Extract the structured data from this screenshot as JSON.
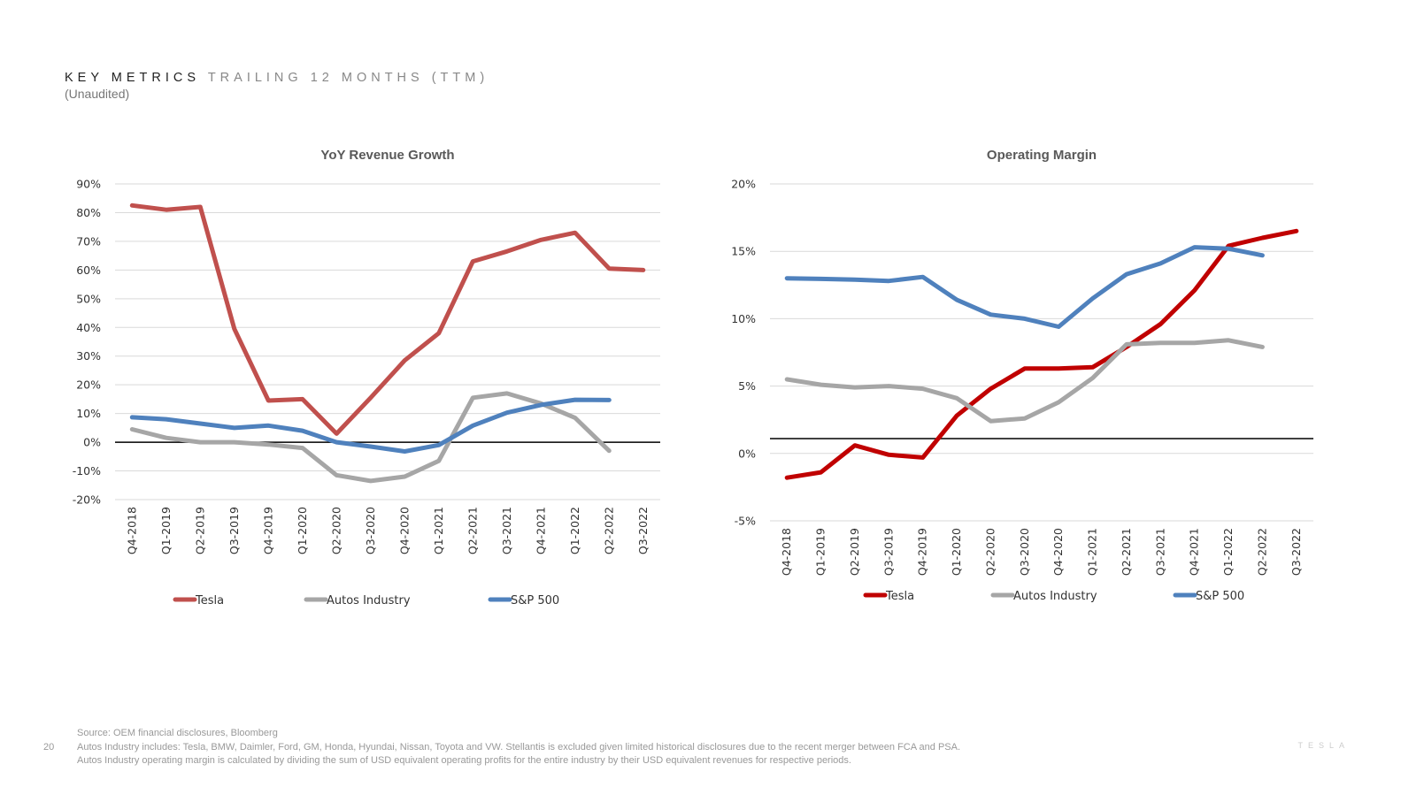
{
  "header": {
    "title_main": "KEY METRICS",
    "title_sub": "TRAILING 12 MONTHS (TTM)",
    "note": "(Unaudited)"
  },
  "chart_data": [
    {
      "type": "line",
      "title": "YoY Revenue Growth",
      "x": [
        "Q4-2018",
        "Q1-2019",
        "Q2-2019",
        "Q3-2019",
        "Q4-2019",
        "Q1-2020",
        "Q2-2020",
        "Q3-2020",
        "Q4-2020",
        "Q1-2021",
        "Q2-2021",
        "Q3-2021",
        "Q4-2021",
        "Q1-2022",
        "Q2-2022",
        "Q3-2022"
      ],
      "ylim": [
        -20,
        90
      ],
      "yticks": [
        -20,
        -10,
        0,
        10,
        20,
        30,
        40,
        50,
        60,
        70,
        80,
        90
      ],
      "tick_suffix": "%",
      "zero_line": 0,
      "grid": true,
      "legend_position": "bottom",
      "series": [
        {
          "name": "Tesla",
          "color": "#C0504D",
          "values": [
            82.5,
            81,
            82,
            39.5,
            14.5,
            15,
            3,
            15.5,
            28.5,
            38,
            63,
            66.5,
            70.5,
            73,
            60.5,
            60
          ]
        },
        {
          "name": "Autos Industry",
          "color": "#A6A6A6",
          "values": [
            4.5,
            1.5,
            0,
            0,
            -0.8,
            -2,
            -11.5,
            -13.5,
            -12,
            -6.5,
            15.5,
            17,
            13.5,
            8.5,
            -3,
            null
          ]
        },
        {
          "name": "S&P 500",
          "color": "#4F81BD",
          "values": [
            8.7,
            8,
            6.5,
            5,
            5.8,
            4,
            0,
            -1.5,
            -3.2,
            -1,
            5.8,
            10.3,
            13,
            14.8,
            14.7,
            null
          ]
        }
      ]
    },
    {
      "type": "line",
      "title": "Operating Margin",
      "x": [
        "Q4-2018",
        "Q1-2019",
        "Q2-2019",
        "Q3-2019",
        "Q4-2019",
        "Q1-2020",
        "Q2-2020",
        "Q3-2020",
        "Q4-2020",
        "Q1-2021",
        "Q2-2021",
        "Q3-2021",
        "Q4-2021",
        "Q1-2022",
        "Q2-2022",
        "Q3-2022"
      ],
      "ylim": [
        -5,
        20
      ],
      "yticks": [
        -5,
        0,
        5,
        10,
        15,
        20
      ],
      "tick_suffix": "%",
      "zero_line": 1.1,
      "grid": true,
      "legend_position": "bottom",
      "series": [
        {
          "name": "Tesla",
          "color": "#C00000",
          "values": [
            -1.8,
            -1.4,
            0.6,
            -0.1,
            -0.3,
            2.8,
            4.8,
            6.3,
            6.3,
            6.4,
            7.9,
            9.6,
            12.1,
            15.4,
            16,
            16.5
          ]
        },
        {
          "name": "Autos Industry",
          "color": "#A6A6A6",
          "values": [
            5.5,
            5.1,
            4.9,
            5,
            4.8,
            4.1,
            2.4,
            2.6,
            3.8,
            5.6,
            8.1,
            8.2,
            8.2,
            8.4,
            7.9,
            null
          ]
        },
        {
          "name": "S&P 500",
          "color": "#4F81BD",
          "values": [
            13,
            12.95,
            12.9,
            12.8,
            13.1,
            11.4,
            10.3,
            10,
            9.4,
            11.5,
            13.3,
            14.1,
            15.3,
            15.2,
            14.7,
            null
          ]
        }
      ]
    }
  ],
  "footer": {
    "page_number": "20",
    "lines": [
      "Source: OEM financial disclosures, Bloomberg",
      "Autos Industry includes: Tesla, BMW, Daimler, Ford, GM, Honda, Hyundai, Nissan, Toyota and VW. Stellantis is excluded given limited historical disclosures due to the recent merger between FCA and PSA.",
      "Autos Industry operating margin is calculated by dividing the sum of USD equivalent operating profits for the entire industry by their USD equivalent revenues for respective periods."
    ],
    "brand": "TESLA"
  }
}
